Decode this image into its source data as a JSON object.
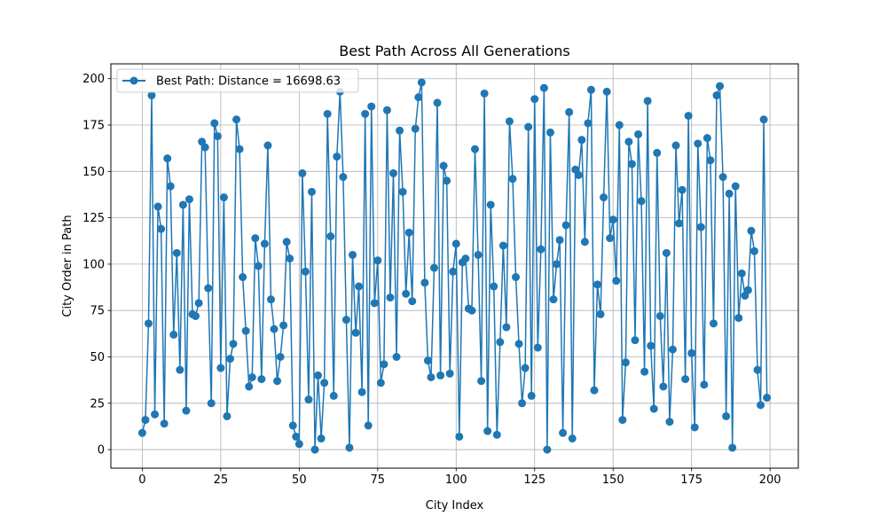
{
  "chart_data": {
    "type": "line",
    "title": "Best Path Across All Generations",
    "xlabel": "City Index",
    "ylabel": "City Order in Path",
    "xlim": [
      -10,
      209
    ],
    "ylim": [
      -10,
      208
    ],
    "xticks": [
      0,
      25,
      50,
      75,
      100,
      125,
      150,
      175,
      200
    ],
    "yticks": [
      0,
      25,
      50,
      75,
      100,
      125,
      150,
      175,
      200
    ],
    "grid": true,
    "legend_position": "top-left",
    "series": [
      {
        "name": "Best Path: Distance = 16698.63",
        "color": "#1f77b4",
        "marker": "circle",
        "x_start": 0,
        "x_step": 1,
        "values": [
          9,
          16,
          68,
          191,
          19,
          131,
          119,
          14,
          157,
          142,
          62,
          106,
          43,
          132,
          21,
          135,
          73,
          72,
          79,
          166,
          163,
          87,
          25,
          176,
          169,
          44,
          136,
          18,
          49,
          57,
          178,
          162,
          93,
          64,
          34,
          39,
          114,
          99,
          38,
          111,
          164,
          81,
          65,
          37,
          50,
          67,
          112,
          103,
          13,
          7,
          3,
          149,
          96,
          27,
          139,
          0,
          40,
          6,
          36,
          181,
          115,
          29,
          158,
          193,
          147,
          70,
          1,
          105,
          63,
          88,
          31,
          181,
          13,
          185,
          79,
          102,
          36,
          46,
          183,
          82,
          149,
          50,
          172,
          139,
          84,
          117,
          80,
          173,
          190,
          198,
          90,
          48,
          39,
          98,
          187,
          40,
          153,
          145,
          41,
          96,
          111,
          7,
          101,
          103,
          76,
          75,
          162,
          105,
          37,
          192,
          10,
          132,
          88,
          8,
          58,
          110,
          66,
          177,
          146,
          93,
          57,
          25,
          44,
          174,
          29,
          189,
          55,
          108,
          195,
          0,
          171,
          81,
          100,
          113,
          9,
          121,
          182,
          6,
          151,
          148,
          167,
          112,
          176,
          194,
          32,
          89,
          73,
          136,
          193,
          114,
          124,
          91,
          175,
          16,
          47,
          166,
          154,
          59,
          170,
          134,
          42,
          188,
          56,
          22,
          160,
          72,
          34,
          106,
          15,
          54,
          164,
          122,
          140,
          38,
          180,
          52,
          12,
          165,
          120,
          35,
          168,
          156,
          68,
          191,
          196,
          147,
          18,
          138,
          1,
          142,
          71,
          95,
          83,
          86,
          118,
          107,
          43,
          24,
          178,
          28
        ]
      }
    ]
  }
}
